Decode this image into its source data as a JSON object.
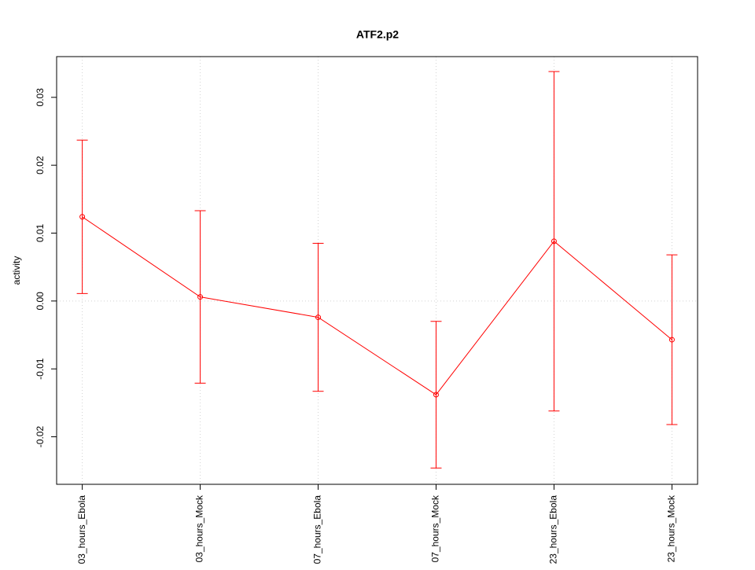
{
  "chart_data": {
    "type": "line_errorbar",
    "title": "ATF2.p2",
    "ylabel": "activity",
    "categories": [
      "03_hours_Ebola",
      "03_hours_Mock",
      "07_hours_Ebola",
      "07_hours_Mock",
      "23_hours_Ebola",
      "23_hours_Mock"
    ],
    "series": [
      {
        "color": "#ff0000",
        "values": [
          0.0124,
          0.0006,
          -0.0024,
          -0.0138,
          0.0088,
          -0.0057
        ],
        "errors": [
          0.0113,
          0.0127,
          0.0109,
          0.0108,
          0.025,
          0.0125
        ]
      }
    ],
    "ylim": [
      -0.027,
      0.036
    ],
    "yticks": [
      -0.02,
      -0.01,
      {
        "value": 0,
        "label": "0.00"
      },
      0.01,
      0.02,
      0.03
    ],
    "hline": 0,
    "grid": true
  }
}
